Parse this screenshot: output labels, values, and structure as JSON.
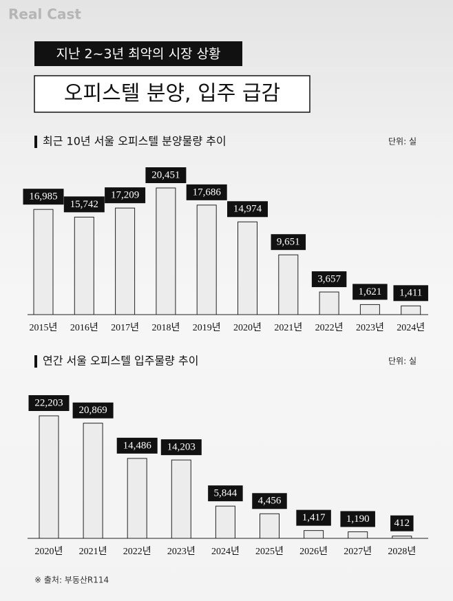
{
  "brand": "Real Cast",
  "headline": [
    "지난 2~3년 최악의 시장 상황",
    "오피스텔 분양, 입주 급감"
  ],
  "source": "※ 출처: 부동산R114",
  "chart_data": [
    {
      "type": "bar",
      "title": "최근 10년 서울 오피스텔 분양물량 추이",
      "unit": "단위: 실",
      "categories": [
        "2015년",
        "2016년",
        "2017년",
        "2018년",
        "2019년",
        "2020년",
        "2021년",
        "2022년",
        "2023년",
        "2024년"
      ],
      "values": [
        16985,
        15742,
        17209,
        20451,
        17686,
        14974,
        9651,
        3657,
        1621,
        1411
      ],
      "value_labels": [
        "16,985",
        "15,742",
        "17,209",
        "20,451",
        "17,686",
        "14,974",
        "9,651",
        "3,657",
        "1,621",
        "1,411"
      ],
      "color": "#ececec"
    },
    {
      "type": "bar",
      "title": "연간 서울 오피스텔 입주물량 추이",
      "unit": "단위: 실",
      "categories": [
        "2020년",
        "2021년",
        "2022년",
        "2023년",
        "2024년",
        "2025년",
        "2026년",
        "2027년",
        "2028년"
      ],
      "values": [
        22203,
        20869,
        14486,
        14203,
        5844,
        4456,
        1417,
        1190,
        412
      ],
      "value_labels": [
        "22,203",
        "20,869",
        "14,486",
        "14,203",
        "5,844",
        "4,456",
        "1,417",
        "1,190",
        "412"
      ],
      "color": "#ececec"
    }
  ]
}
